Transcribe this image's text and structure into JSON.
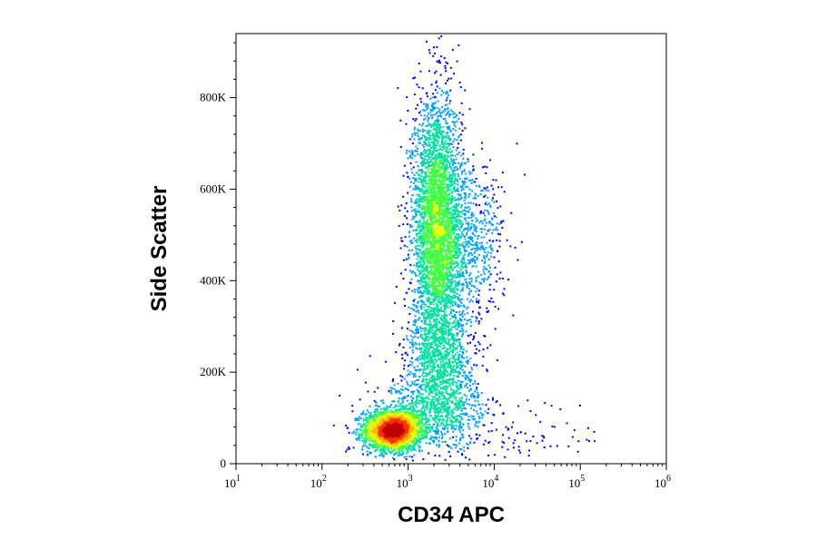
{
  "chart_data": {
    "type": "scatter",
    "xlabel": "CD34 APC",
    "ylabel": "Side Scatter",
    "x_scale": "log",
    "xlim": [
      10,
      1000000
    ],
    "ylim": [
      0,
      940000
    ],
    "x_ticks": [
      {
        "value": 10,
        "base": "10",
        "exp": "1"
      },
      {
        "value": 100,
        "base": "10",
        "exp": "2"
      },
      {
        "value": 1000,
        "base": "10",
        "exp": "3"
      },
      {
        "value": 10000,
        "base": "10",
        "exp": "4"
      },
      {
        "value": 100000,
        "base": "10",
        "exp": "5"
      },
      {
        "value": 1000000,
        "base": "10",
        "exp": "6"
      }
    ],
    "y_ticks": [
      {
        "value": 0,
        "label": "0"
      },
      {
        "value": 200000,
        "label": "200K"
      },
      {
        "value": 400000,
        "label": "400K"
      },
      {
        "value": 600000,
        "label": "600K"
      },
      {
        "value": 800000,
        "label": "800K"
      }
    ],
    "density_colormap": [
      "#0000ff",
      "#00a0ff",
      "#00e0a0",
      "#40ff40",
      "#e0ff00",
      "#ffb000",
      "#ff3000",
      "#c00000"
    ],
    "populations": [
      {
        "center_x": 650,
        "center_y": 75000,
        "sd_log_x": 0.17,
        "sd_y": 22000,
        "count": 2600
      },
      {
        "center_x": 2100,
        "center_y": 520000,
        "sd_log_x": 0.14,
        "sd_y": 140000,
        "count": 3800
      },
      {
        "center_x": 2400,
        "center_y": 220000,
        "sd_log_x": 0.2,
        "sd_y": 70000,
        "count": 1100
      },
      {
        "center_x": 5000,
        "center_y": 480000,
        "sd_log_x": 0.2,
        "sd_y": 90000,
        "count": 700
      },
      {
        "center_x": 2000,
        "center_y": 110000,
        "sd_log_x": 0.35,
        "sd_y": 40000,
        "count": 700
      },
      {
        "center_x": 30000,
        "center_y": 60000,
        "sd_log_x": 0.35,
        "sd_y": 35000,
        "count": 60
      }
    ]
  }
}
